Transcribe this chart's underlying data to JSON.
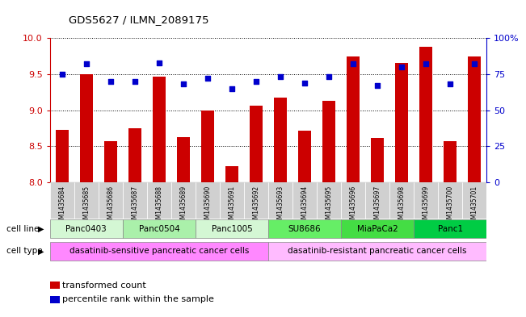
{
  "title": "GDS5627 / ILMN_2089175",
  "samples": [
    "GSM1435684",
    "GSM1435685",
    "GSM1435686",
    "GSM1435687",
    "GSM1435688",
    "GSM1435689",
    "GSM1435690",
    "GSM1435691",
    "GSM1435692",
    "GSM1435693",
    "GSM1435694",
    "GSM1435695",
    "GSM1435696",
    "GSM1435697",
    "GSM1435698",
    "GSM1435699",
    "GSM1435700",
    "GSM1435701"
  ],
  "bar_values": [
    8.73,
    9.5,
    8.57,
    8.75,
    9.47,
    8.63,
    9.0,
    8.22,
    9.06,
    9.17,
    8.71,
    9.13,
    9.75,
    8.62,
    9.65,
    9.88,
    8.57,
    9.75
  ],
  "dot_values": [
    75,
    82,
    70,
    70,
    83,
    68,
    72,
    65,
    70,
    73,
    69,
    73,
    82,
    67,
    80,
    82,
    68,
    82
  ],
  "bar_color": "#cc0000",
  "dot_color": "#0000cc",
  "ylim_left": [
    8.0,
    10.0
  ],
  "ylim_right": [
    0,
    100
  ],
  "yticks_left": [
    8.0,
    8.5,
    9.0,
    9.5,
    10.0
  ],
  "yticks_right": [
    0,
    25,
    50,
    75,
    100
  ],
  "cell_lines": [
    {
      "label": "Panc0403",
      "start": 0,
      "end": 2,
      "color": "#d4f7d4"
    },
    {
      "label": "Panc0504",
      "start": 3,
      "end": 5,
      "color": "#aaf0aa"
    },
    {
      "label": "Panc1005",
      "start": 6,
      "end": 8,
      "color": "#d4f7d4"
    },
    {
      "label": "SU8686",
      "start": 9,
      "end": 11,
      "color": "#66ee66"
    },
    {
      "label": "MiaPaCa2",
      "start": 12,
      "end": 14,
      "color": "#44dd44"
    },
    {
      "label": "Panc1",
      "start": 15,
      "end": 17,
      "color": "#00cc44"
    }
  ],
  "cell_type_sensitive": {
    "label": "dasatinib-sensitive pancreatic cancer cells",
    "start": 0,
    "end": 8,
    "color": "#ff88ff"
  },
  "cell_type_resistant": {
    "label": "dasatinib-resistant pancreatic cancer cells",
    "start": 9,
    "end": 17,
    "color": "#ffbbff"
  },
  "legend_bar_label": "transformed count",
  "legend_dot_label": "percentile rank within the sample",
  "cell_line_label": "cell line",
  "cell_type_label": "cell type",
  "bar_width": 0.55,
  "sample_label_bg": "#d0d0d0"
}
